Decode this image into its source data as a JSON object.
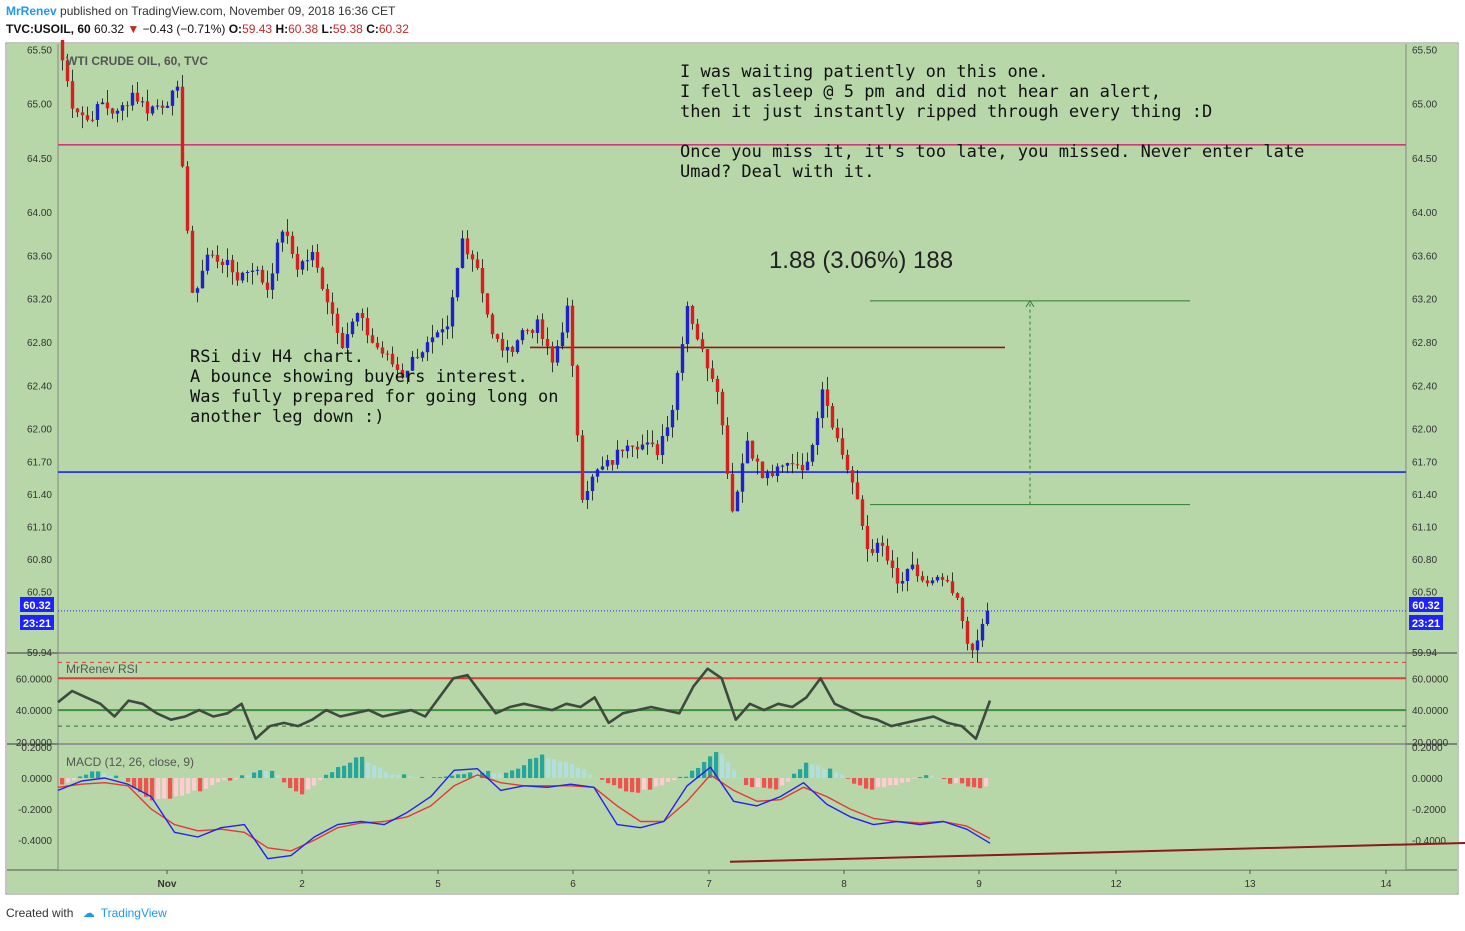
{
  "header": {
    "author": "MrRenev",
    "published": "published on TradingView.com, November 09, 2018 16:36 CET",
    "symbol": "TVC:USOIL, 60",
    "last": "60.32",
    "change": "−0.43 (−0.71%)",
    "o_label": "O:",
    "o": "59.43",
    "h_label": "H:",
    "h": "60.38",
    "l_label": "L:",
    "l": "59.38",
    "c_label": "C:",
    "c": "60.32"
  },
  "footer": {
    "created_with": "Created with",
    "brand": "TradingView"
  },
  "colors": {
    "background": "#b7d7a8",
    "bull": "#1e22c8",
    "bear": "#d81e1e",
    "support": "#1e22ff",
    "resistance": "#d6367c",
    "rsi_line": "#3f4a3f",
    "macd_line": "#2222ee",
    "signal_line": "#e53935"
  },
  "chart_data": {
    "type": "candlestick",
    "title": "WTI CRUDE OIL, 60, TVC",
    "price_axis": {
      "ticks": [
        "65.50",
        "65.00",
        "64.50",
        "64.00",
        "63.60",
        "63.20",
        "62.80",
        "62.40",
        "62.00",
        "61.70",
        "61.40",
        "61.10",
        "60.80",
        "60.50",
        "59.94"
      ],
      "range": [
        59.94,
        65.55
      ]
    },
    "last_price_label": "60.32",
    "countdown_label": "23:21",
    "time_axis": [
      "Nov",
      "2",
      "5",
      "6",
      "7",
      "8",
      "9",
      "12",
      "13",
      "14"
    ],
    "ohlc_series": {
      "approx": true,
      "path": [
        65.6,
        65.0,
        64.85,
        65.0,
        64.9,
        65.1,
        64.95,
        65.0,
        65.1,
        63.2,
        63.6,
        63.55,
        63.4,
        63.5,
        63.3,
        63.85,
        63.5,
        63.6,
        63.2,
        62.8,
        63.05,
        62.8,
        62.65,
        62.5,
        62.7,
        62.8,
        62.9,
        63.75,
        63.5,
        62.85,
        62.7,
        62.9,
        62.95,
        62.6,
        63.1,
        61.4,
        61.6,
        61.7,
        61.9,
        61.85,
        61.8,
        62.2,
        63.15,
        62.7,
        62.4,
        61.25,
        61.9,
        61.55,
        61.6,
        61.7,
        61.65,
        62.4,
        61.9,
        61.5,
        60.9,
        60.9,
        60.55,
        60.7,
        60.55,
        60.6,
        60.4,
        59.9,
        60.32
      ],
      "segment_candles": 3
    },
    "horizontal_lines": [
      {
        "price": 64.62,
        "color": "#d6367c"
      },
      {
        "price": 61.6,
        "color": "#1e22ff"
      },
      {
        "price": 62.75,
        "color": "#8b1a1a",
        "from_index": 94,
        "to_index": 189
      },
      {
        "price": 60.32,
        "color": "#1e22ff",
        "dotted": true
      }
    ],
    "measure": {
      "label": "1.88 (3.06%) 188",
      "top_price": 63.18,
      "bottom_price": 61.3,
      "from_index": 162,
      "to_index": 226,
      "arrow_index": 194
    },
    "annotations": [
      {
        "lines": [
          "I was waiting patiently on this one.",
          "I fell asleep @ 5 pm and did not hear an alert,",
          "then it just instantly ripped through every thing :D",
          "",
          "Once you miss it, it's too late, you missed. Never enter late",
          "Umad? Deal with it."
        ]
      },
      {
        "lines": [
          "RSi div H4 chart.",
          "A bounce showing buyers interest.",
          "Was fully prepared for going long on",
          "another leg down :)"
        ]
      }
    ],
    "rsi": {
      "title": "MrRenev RSI",
      "ticks": [
        "60.0000",
        "40.0000",
        "20.0000"
      ],
      "levels": [
        {
          "value": 60,
          "color": "#e53935"
        },
        {
          "value": 40,
          "color": "#3f8f3f"
        },
        {
          "value": 70,
          "color": "#e53935",
          "dashed": true
        },
        {
          "value": 30,
          "color": "#2f6f2f",
          "dashed": true
        }
      ],
      "range": [
        20,
        74
      ],
      "path": [
        45,
        52,
        48,
        44,
        36,
        46,
        44,
        38,
        34,
        36,
        40,
        36,
        38,
        44,
        22,
        30,
        32,
        30,
        34,
        40,
        36,
        38,
        40,
        36,
        38,
        40,
        36,
        48,
        60,
        62,
        50,
        38,
        42,
        44,
        42,
        40,
        44,
        42,
        48,
        32,
        38,
        40,
        42,
        40,
        38,
        55,
        66,
        60,
        34,
        44,
        40,
        44,
        42,
        48,
        60,
        44,
        40,
        36,
        34,
        30,
        32,
        34,
        36,
        32,
        30,
        22,
        46
      ]
    },
    "macd": {
      "title": "MACD (12, 26, close, 9)",
      "ticks": [
        "0.2000",
        "0.0000",
        "-0.2000",
        "-0.4000"
      ],
      "range": [
        -0.58,
        0.2
      ],
      "macd_path": [
        -0.08,
        -0.02,
        0.0,
        -0.04,
        -0.12,
        -0.35,
        -0.38,
        -0.32,
        -0.3,
        -0.52,
        -0.5,
        -0.38,
        -0.3,
        -0.28,
        -0.3,
        -0.22,
        -0.12,
        0.05,
        0.06,
        -0.08,
        -0.05,
        -0.06,
        -0.04,
        -0.06,
        -0.3,
        -0.32,
        -0.28,
        -0.05,
        0.07,
        -0.15,
        -0.18,
        -0.12,
        -0.03,
        -0.17,
        -0.25,
        -0.3,
        -0.28,
        -0.3,
        -0.28,
        -0.33,
        -0.42
      ],
      "signal_path": [
        -0.06,
        -0.04,
        -0.03,
        -0.05,
        -0.2,
        -0.3,
        -0.34,
        -0.33,
        -0.35,
        -0.45,
        -0.47,
        -0.4,
        -0.32,
        -0.29,
        -0.28,
        -0.25,
        -0.18,
        -0.05,
        0.02,
        -0.03,
        -0.05,
        -0.05,
        -0.05,
        -0.06,
        -0.18,
        -0.28,
        -0.28,
        -0.15,
        0.02,
        -0.08,
        -0.15,
        -0.14,
        -0.06,
        -0.12,
        -0.2,
        -0.26,
        -0.28,
        -0.29,
        -0.28,
        -0.31,
        -0.39
      ],
      "hist_path": [
        -0.05,
        0.05,
        0.0,
        -0.15,
        -0.12,
        -0.05,
        0.01,
        0.06,
        -0.12,
        0.04,
        0.14,
        0.03,
        0.0,
        0.02,
        0.04,
        0.03,
        0.15,
        0.1,
        0.0,
        -0.1,
        -0.06,
        0.02,
        0.18,
        -0.05,
        -0.08,
        0.1,
        0.04,
        -0.08,
        -0.04,
        0.02,
        -0.04,
        -0.06
      ],
      "trendline_index": [
        134,
        352
      ],
      "trendline_value": [
        -0.54,
        -0.36
      ],
      "trendline_color": "#8b1a1a"
    }
  }
}
